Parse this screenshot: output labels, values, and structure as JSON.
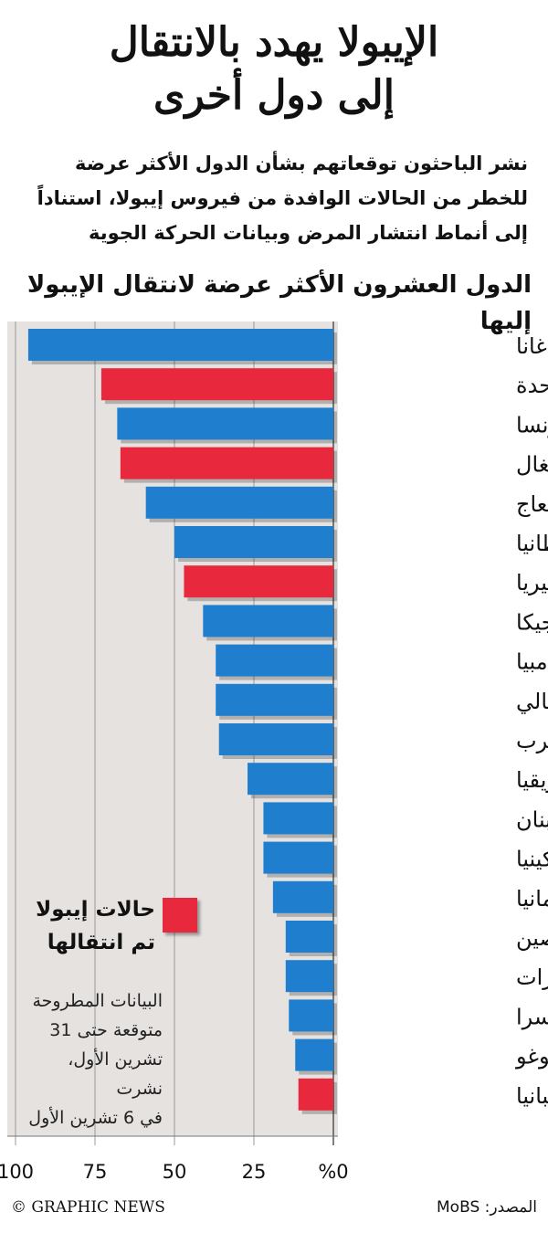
{
  "title_line1": "الإيبولا يهدد بالانتقال",
  "title_line2": "إلى دول أخرى",
  "subtitle_line1": "نشر الباحثون توقعاتهم بشأن الدول الأكثر عرضة",
  "subtitle_line2": "للخطر من الحالات الوافدة من فيروس إيبولا، استناداً",
  "subtitle_line3": "إلى أنماط انتشار المرض وبيانات الحركة الجوية",
  "legend": {
    "label_line1": "حالات إيبولا",
    "label_line2": "تم انتقالها"
  },
  "note": {
    "line1": "البيانات المطروحة",
    "line2": "متوقعة حتى 31",
    "line3": "تشرين الأول، نشرت",
    "line4": "في 6 تشرين الأول"
  },
  "credit": "© GRAPHIC NEWS",
  "source": "المصدر: MoBS",
  "colors": {
    "bar_blue": "#1f7fce",
    "bar_red": "#e8283c",
    "panel_bg": "#e5e2e0"
  },
  "chart_data": {
    "type": "bar",
    "orientation": "horizontal",
    "title": "الدول العشرون الأكثر عرضة لانتقال الإيبولا إليها",
    "categories": [
      "غانا",
      "الولايات المتحدة",
      "فرنسا",
      "السنغال",
      "ساحل العاج",
      "بريطانيا",
      "نيجيريا",
      "بلجيكا",
      "غامبيا",
      "مالي",
      "المغرب",
      "جنوب أفريقيا",
      "لبنان",
      "كينيا",
      "ألمانيا",
      "الصين",
      "الإمارات",
      "سويسرا",
      "توغو",
      "إسبانيا"
    ],
    "values": [
      96,
      73,
      68,
      67,
      59,
      50,
      47,
      41,
      37,
      37,
      36,
      27,
      22,
      22,
      19,
      15,
      15,
      14,
      12,
      11
    ],
    "highlighted": [
      false,
      true,
      false,
      true,
      false,
      false,
      true,
      false,
      false,
      false,
      false,
      false,
      false,
      false,
      false,
      false,
      false,
      false,
      false,
      true
    ],
    "xlim": [
      0,
      100
    ],
    "ticks": [
      0,
      25,
      50,
      75,
      100
    ],
    "tick_labels": [
      "%0",
      "25",
      "50",
      "75",
      "100"
    ],
    "grid": true
  }
}
